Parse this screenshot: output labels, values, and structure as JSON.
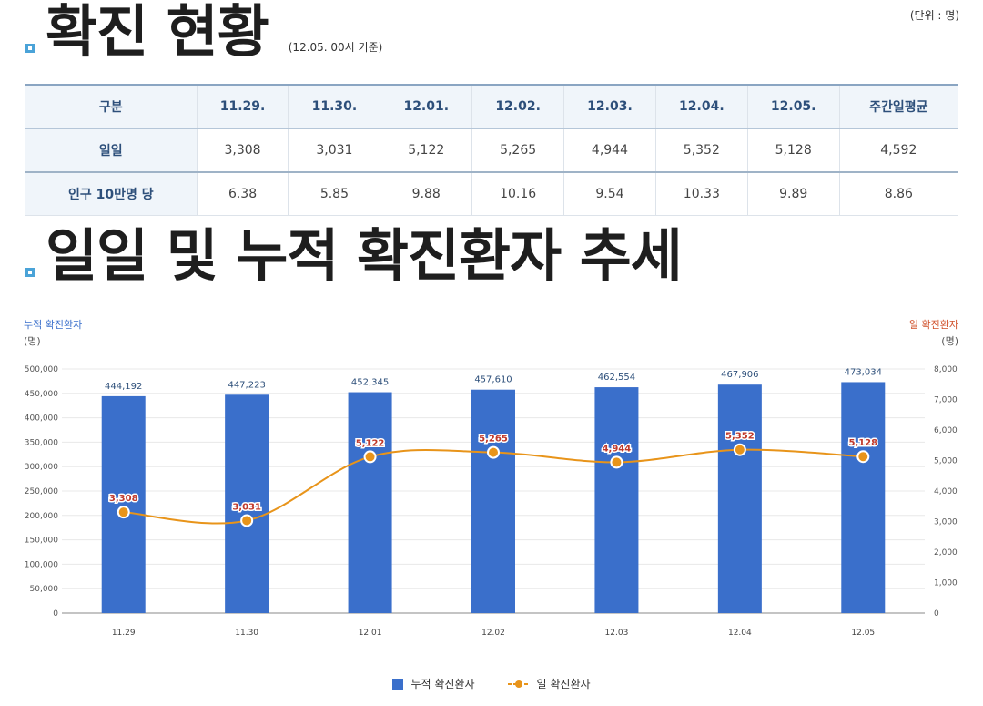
{
  "section1": {
    "title": "확진 현황",
    "basis": "(12.05. 00시 기준)",
    "unit": "(단위 : 명)"
  },
  "table": {
    "headers": [
      "구분",
      "11.29.",
      "11.30.",
      "12.01.",
      "12.02.",
      "12.03.",
      "12.04.",
      "12.05.",
      "주간일평균"
    ],
    "rows": [
      {
        "label": "일일",
        "cells": [
          "3,308",
          "3,031",
          "5,122",
          "5,265",
          "4,944",
          "5,352",
          "5,128",
          "4,592"
        ]
      },
      {
        "label": "인구 10만명 당",
        "cells": [
          "6.38",
          "5.85",
          "9.88",
          "10.16",
          "9.54",
          "10.33",
          "9.89",
          "8.86"
        ]
      }
    ]
  },
  "section2": {
    "title": "일일 및 누적 확진환자 추세"
  },
  "chart_data": {
    "type": "bar",
    "categories": [
      "11.29",
      "11.30",
      "12.01",
      "12.02",
      "12.03",
      "12.04",
      "12.05"
    ],
    "left_axis": {
      "label": "누적 확진환자",
      "unit": "(명)",
      "ylim": [
        0,
        500000
      ],
      "ticks": [
        "0",
        "50,000",
        "100,000",
        "150,000",
        "200,000",
        "250,000",
        "300,000",
        "350,000",
        "400,000",
        "450,000",
        "500,000"
      ]
    },
    "right_axis": {
      "label": "일 확진환자",
      "unit": "(명)",
      "ylim": [
        0,
        8000
      ],
      "ticks": [
        "0",
        "1,000",
        "2,000",
        "3,000",
        "4,000",
        "5,000",
        "6,000",
        "7,000",
        "8,000"
      ]
    },
    "series": [
      {
        "name": "누적 확진환자",
        "kind": "bar",
        "axis": "left",
        "color": "#3a6fcb",
        "values": [
          444192,
          447223,
          452345,
          457610,
          462554,
          467906,
          473034
        ],
        "labels": [
          "444,192",
          "447,223",
          "452,345",
          "457,610",
          "462,554",
          "467,906",
          "473,034"
        ]
      },
      {
        "name": "일 확진환자",
        "kind": "line",
        "axis": "right",
        "color": "#e8941a",
        "values": [
          3308,
          3031,
          5122,
          5265,
          4944,
          5352,
          5128
        ],
        "labels": [
          "3,308",
          "3,031",
          "5,122",
          "5,265",
          "4,944",
          "5,352",
          "5,128"
        ]
      }
    ],
    "grid": true,
    "legend": "bottom-center"
  }
}
